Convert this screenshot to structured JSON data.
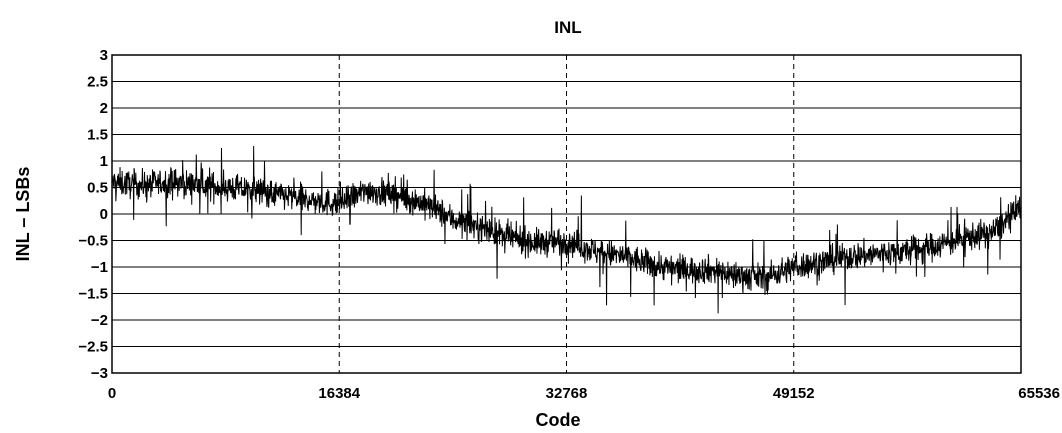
{
  "chart_data": {
    "type": "line",
    "title": "INL",
    "xlabel": "Code",
    "ylabel": "INL – LSBs",
    "xlim": [
      0,
      65536
    ],
    "ylim": [
      -3,
      3
    ],
    "x_ticks": [
      "0",
      "16384",
      "32768",
      "49152",
      "65536"
    ],
    "y_ticks": [
      "3",
      "2.5",
      "2",
      "1.5",
      "1",
      "0.5",
      "0",
      "−0.5",
      "−1",
      "−1.5",
      "−2",
      "−2.5",
      "−3"
    ],
    "grid": {
      "horizontal": "solid",
      "vertical": "dashed"
    },
    "line_color": "#000000",
    "series": [
      {
        "x": [
          0,
          2048,
          4096,
          6144,
          8192,
          10240,
          12288,
          14336,
          16384,
          18432,
          20480,
          22528,
          24576,
          26624,
          28672,
          30720,
          32768,
          34816,
          36864,
          38912,
          40960,
          43008,
          45056,
          47104,
          49152,
          51200,
          53248,
          55296,
          57344,
          59392,
          61440,
          63488,
          65535
        ],
        "y": [
          0.6,
          0.55,
          0.6,
          0.55,
          0.5,
          0.45,
          0.35,
          0.25,
          0.2,
          0.45,
          0.35,
          0.2,
          -0.1,
          -0.25,
          -0.45,
          -0.55,
          -0.5,
          -0.7,
          -0.8,
          -0.95,
          -1.05,
          -1.05,
          -1.15,
          -1.2,
          -1.0,
          -0.9,
          -0.8,
          -0.75,
          -0.7,
          -0.6,
          -0.45,
          -0.35,
          0.1
        ],
        "noise_amplitude": 0.45,
        "min_value": -2.2,
        "max_value": 1.4
      }
    ]
  }
}
